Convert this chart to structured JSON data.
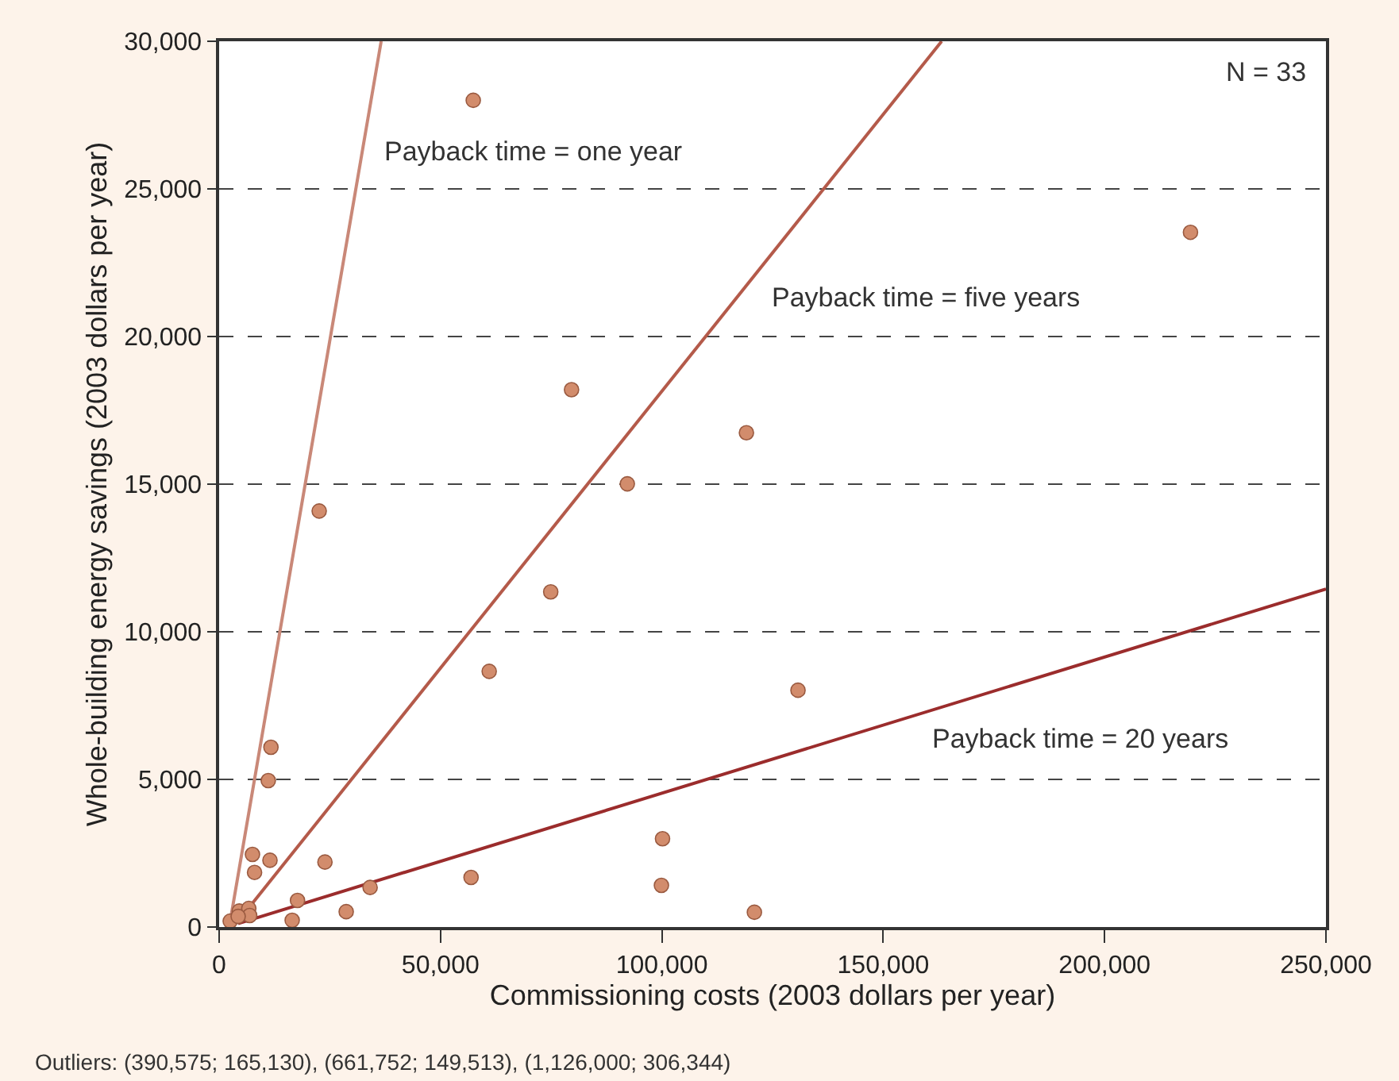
{
  "chart_data": {
    "type": "scatter",
    "xlabel": "Commissioning costs (2003 dollars per year)",
    "ylabel": "Whole-building energy savings (2003 dollars per year)",
    "xlim": [
      0,
      250000
    ],
    "ylim": [
      0,
      30000
    ],
    "xticks": [
      0,
      {
        "value": 50000,
        "label": "50,000"
      },
      {
        "value": 100000,
        "label": "100,000"
      },
      {
        "value": 150000,
        "label": "150,000"
      },
      {
        "value": 200000,
        "label": "200,000"
      },
      {
        "value": 250000,
        "label": "250,000"
      }
    ],
    "yticks": [
      0,
      {
        "value": 5000,
        "label": "5,000"
      },
      {
        "value": 10000,
        "label": "10,000"
      },
      {
        "value": 15000,
        "label": "15,000"
      },
      {
        "value": 20000,
        "label": "20,000"
      },
      {
        "value": 25000,
        "label": "25,000"
      },
      {
        "value": 30000,
        "label": "30,000"
      }
    ],
    "grid": "y",
    "series": [
      {
        "type": "line",
        "marker": "none",
        "color": "#c98878",
        "line_style": "solid",
        "x": [
          2500,
          36600
        ],
        "values": [
          200,
          30000
        ]
      },
      {
        "type": "line",
        "marker": "none",
        "color": "#b45a4a",
        "line_style": "solid",
        "x": [
          4300,
          163200
        ],
        "values": [
          200,
          30000
        ]
      },
      {
        "type": "line",
        "marker": "none",
        "color": "#9b2c2c",
        "line_style": "solid",
        "x": [
          4300,
          250000
        ],
        "values": [
          120,
          11450
        ]
      },
      {
        "marker": "circle",
        "color": "#d28c6c",
        "x": [
          57400,
          22600,
          79600,
          119100,
          92200,
          74900,
          219400,
          61000,
          130750,
          56900,
          100150,
          99900,
          120900,
          11700,
          11100,
          7530,
          11480,
          8000,
          23900,
          34100,
          17700,
          28700,
          16500,
          2500,
          4540,
          6700,
          6900,
          4300
        ],
        "values": [
          28000,
          14090,
          18200,
          16740,
          15010,
          11350,
          23530,
          8660,
          8020,
          1680,
          2990,
          1410,
          500,
          6090,
          4960,
          2460,
          2260,
          1850,
          2200,
          1340,
          900,
          520,
          230,
          200,
          540,
          630,
          390,
          360
        ]
      }
    ],
    "annotations": [
      "Payback time = one year",
      "Payback time = five years",
      "Payback time = 20 years",
      "N = 33",
      "Outliers: (390,575; 165,130), (661,752; 149,513), (1,126,000; 306,344)"
    ]
  }
}
